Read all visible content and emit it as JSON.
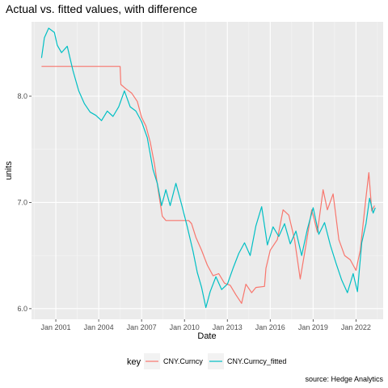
{
  "chart_data": {
    "type": "line",
    "title": "Actual vs. fitted values, with difference",
    "xlabel": "Date",
    "ylabel": "units",
    "caption": "source: Hedge Analytics",
    "legend": {
      "title": "key",
      "placement": "bottom"
    },
    "xlim": [
      1999.3,
      2023.9
    ],
    "ylim": [
      5.9,
      8.7
    ],
    "x_ticks": [
      {
        "value": 2001,
        "label": "Jan 2001"
      },
      {
        "value": 2004,
        "label": "Jan 2004"
      },
      {
        "value": 2007,
        "label": "Jan 2007"
      },
      {
        "value": 2010,
        "label": "Jan 2010"
      },
      {
        "value": 2013,
        "label": "Jan 2013"
      },
      {
        "value": 2016,
        "label": "Jan 2016"
      },
      {
        "value": 2019,
        "label": "Jan 2019"
      },
      {
        "value": 2022,
        "label": "Jan 2022"
      }
    ],
    "y_ticks": [
      {
        "value": 6.0,
        "label": "6.0"
      },
      {
        "value": 7.0,
        "label": "7.0"
      },
      {
        "value": 8.0,
        "label": "8.0"
      }
    ],
    "grid": true,
    "series": [
      {
        "name": "CNY.Curncy",
        "color": "#f8766d",
        "points": [
          [
            2000.0,
            8.28
          ],
          [
            2005.5,
            8.28
          ],
          [
            2005.55,
            8.11
          ],
          [
            2005.9,
            8.07
          ],
          [
            2006.3,
            8.03
          ],
          [
            2006.7,
            7.95
          ],
          [
            2007.0,
            7.8
          ],
          [
            2007.3,
            7.72
          ],
          [
            2007.6,
            7.57
          ],
          [
            2007.9,
            7.36
          ],
          [
            2008.2,
            7.08
          ],
          [
            2008.45,
            6.87
          ],
          [
            2008.7,
            6.83
          ],
          [
            2009.2,
            6.83
          ],
          [
            2009.7,
            6.83
          ],
          [
            2010.3,
            6.83
          ],
          [
            2010.5,
            6.8
          ],
          [
            2010.8,
            6.67
          ],
          [
            2011.2,
            6.55
          ],
          [
            2011.6,
            6.41
          ],
          [
            2012.0,
            6.31
          ],
          [
            2012.4,
            6.33
          ],
          [
            2012.8,
            6.24
          ],
          [
            2013.2,
            6.22
          ],
          [
            2013.6,
            6.13
          ],
          [
            2014.0,
            6.05
          ],
          [
            2014.3,
            6.23
          ],
          [
            2014.7,
            6.15
          ],
          [
            2015.0,
            6.2
          ],
          [
            2015.6,
            6.21
          ],
          [
            2015.7,
            6.38
          ],
          [
            2016.0,
            6.55
          ],
          [
            2016.5,
            6.65
          ],
          [
            2016.9,
            6.93
          ],
          [
            2017.3,
            6.88
          ],
          [
            2017.7,
            6.65
          ],
          [
            2018.1,
            6.28
          ],
          [
            2018.5,
            6.6
          ],
          [
            2018.9,
            6.93
          ],
          [
            2019.3,
            6.72
          ],
          [
            2019.7,
            7.12
          ],
          [
            2020.0,
            6.93
          ],
          [
            2020.4,
            7.08
          ],
          [
            2020.8,
            6.65
          ],
          [
            2021.2,
            6.5
          ],
          [
            2021.6,
            6.46
          ],
          [
            2022.0,
            6.36
          ],
          [
            2022.3,
            6.55
          ],
          [
            2022.7,
            7.05
          ],
          [
            2022.9,
            7.28
          ],
          [
            2023.1,
            6.92
          ],
          [
            2023.3,
            6.97
          ]
        ]
      },
      {
        "name": "CNY.Curncy_fitted",
        "color": "#00bfc4",
        "points": [
          [
            2000.0,
            8.36
          ],
          [
            2000.2,
            8.55
          ],
          [
            2000.5,
            8.64
          ],
          [
            2000.9,
            8.6
          ],
          [
            2001.1,
            8.48
          ],
          [
            2001.4,
            8.41
          ],
          [
            2001.8,
            8.47
          ],
          [
            2002.2,
            8.24
          ],
          [
            2002.6,
            8.05
          ],
          [
            2003.0,
            7.93
          ],
          [
            2003.4,
            7.85
          ],
          [
            2003.8,
            7.82
          ],
          [
            2004.2,
            7.77
          ],
          [
            2004.6,
            7.86
          ],
          [
            2005.0,
            7.81
          ],
          [
            2005.4,
            7.9
          ],
          [
            2005.8,
            8.05
          ],
          [
            2006.2,
            7.9
          ],
          [
            2006.6,
            7.86
          ],
          [
            2007.0,
            7.76
          ],
          [
            2007.4,
            7.61
          ],
          [
            2007.8,
            7.31
          ],
          [
            2008.1,
            7.18
          ],
          [
            2008.4,
            6.97
          ],
          [
            2008.7,
            7.12
          ],
          [
            2009.0,
            6.97
          ],
          [
            2009.4,
            7.18
          ],
          [
            2009.8,
            6.98
          ],
          [
            2010.2,
            6.77
          ],
          [
            2010.6,
            6.54
          ],
          [
            2010.9,
            6.34
          ],
          [
            2011.2,
            6.2
          ],
          [
            2011.5,
            6.01
          ],
          [
            2011.8,
            6.16
          ],
          [
            2012.2,
            6.3
          ],
          [
            2012.6,
            6.18
          ],
          [
            2013.0,
            6.23
          ],
          [
            2013.4,
            6.38
          ],
          [
            2013.8,
            6.52
          ],
          [
            2014.2,
            6.62
          ],
          [
            2014.6,
            6.5
          ],
          [
            2015.0,
            6.78
          ],
          [
            2015.4,
            6.96
          ],
          [
            2015.8,
            6.6
          ],
          [
            2016.2,
            6.77
          ],
          [
            2016.6,
            6.68
          ],
          [
            2017.0,
            6.8
          ],
          [
            2017.4,
            6.61
          ],
          [
            2017.8,
            6.73
          ],
          [
            2018.2,
            6.5
          ],
          [
            2018.6,
            6.75
          ],
          [
            2019.0,
            6.95
          ],
          [
            2019.4,
            6.7
          ],
          [
            2019.8,
            6.81
          ],
          [
            2020.2,
            6.6
          ],
          [
            2020.6,
            6.43
          ],
          [
            2021.0,
            6.27
          ],
          [
            2021.4,
            6.15
          ],
          [
            2021.8,
            6.33
          ],
          [
            2022.1,
            6.16
          ],
          [
            2022.4,
            6.62
          ],
          [
            2022.7,
            6.8
          ],
          [
            2022.95,
            7.04
          ],
          [
            2023.2,
            6.9
          ],
          [
            2023.35,
            6.95
          ]
        ]
      }
    ]
  }
}
